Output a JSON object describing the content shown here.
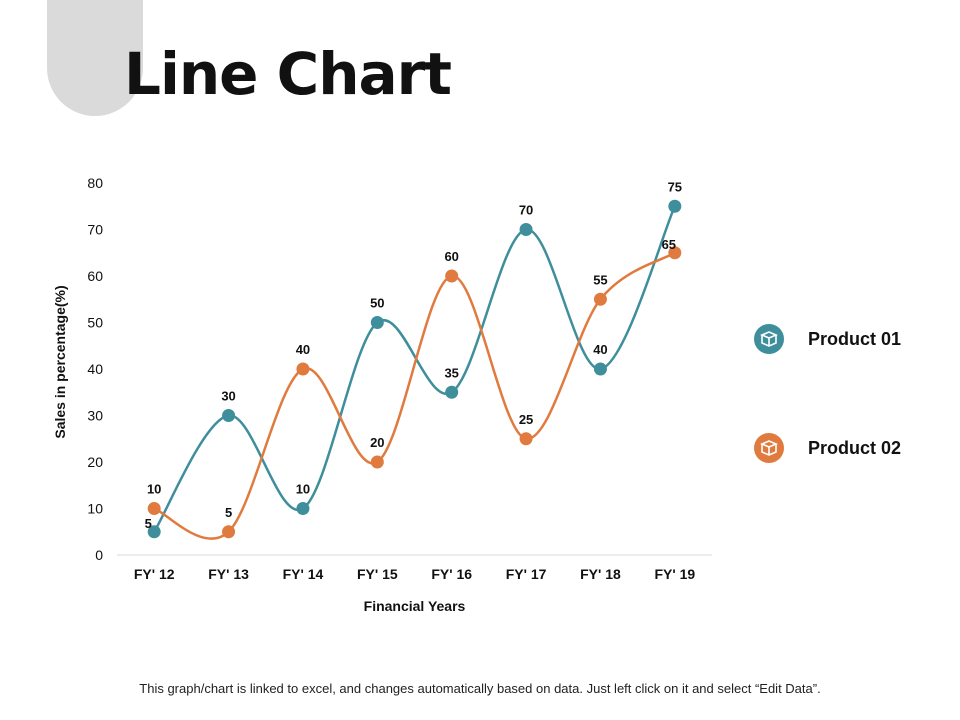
{
  "title": "Line Chart",
  "footnote": "This graph/chart is linked to excel, and changes automatically based on data. Just left click on it and select “Edit Data”.",
  "colors": {
    "product01": "#3e8e9c",
    "product02": "#e07a3e",
    "axis": "#d9d9d9",
    "deco": "#dadada"
  },
  "legend": {
    "items": [
      {
        "label": "Product 01",
        "color": "#3e8e9c",
        "icon": "box-icon"
      },
      {
        "label": "Product 02",
        "color": "#e07a3e",
        "icon": "box-icon"
      }
    ]
  },
  "chart_data": {
    "type": "line",
    "smooth": true,
    "categories": [
      "FY' 12",
      "FY' 13",
      "FY' 14",
      "FY' 15",
      "FY' 16",
      "FY' 17",
      "FY' 18",
      "FY' 19"
    ],
    "series": [
      {
        "name": "Product 01",
        "color": "#3e8e9c",
        "values": [
          5,
          30,
          10,
          50,
          35,
          70,
          40,
          75
        ]
      },
      {
        "name": "Product 02",
        "color": "#e07a3e",
        "values": [
          10,
          5,
          40,
          20,
          60,
          25,
          55,
          65
        ]
      }
    ],
    "xlabel": "Financial Years",
    "ylabel": "Sales in percentage(%)",
    "ylim": [
      0,
      80
    ],
    "yticks": [
      0,
      10,
      20,
      30,
      40,
      50,
      60,
      70,
      80
    ],
    "grid": false,
    "legend_position": "right"
  }
}
